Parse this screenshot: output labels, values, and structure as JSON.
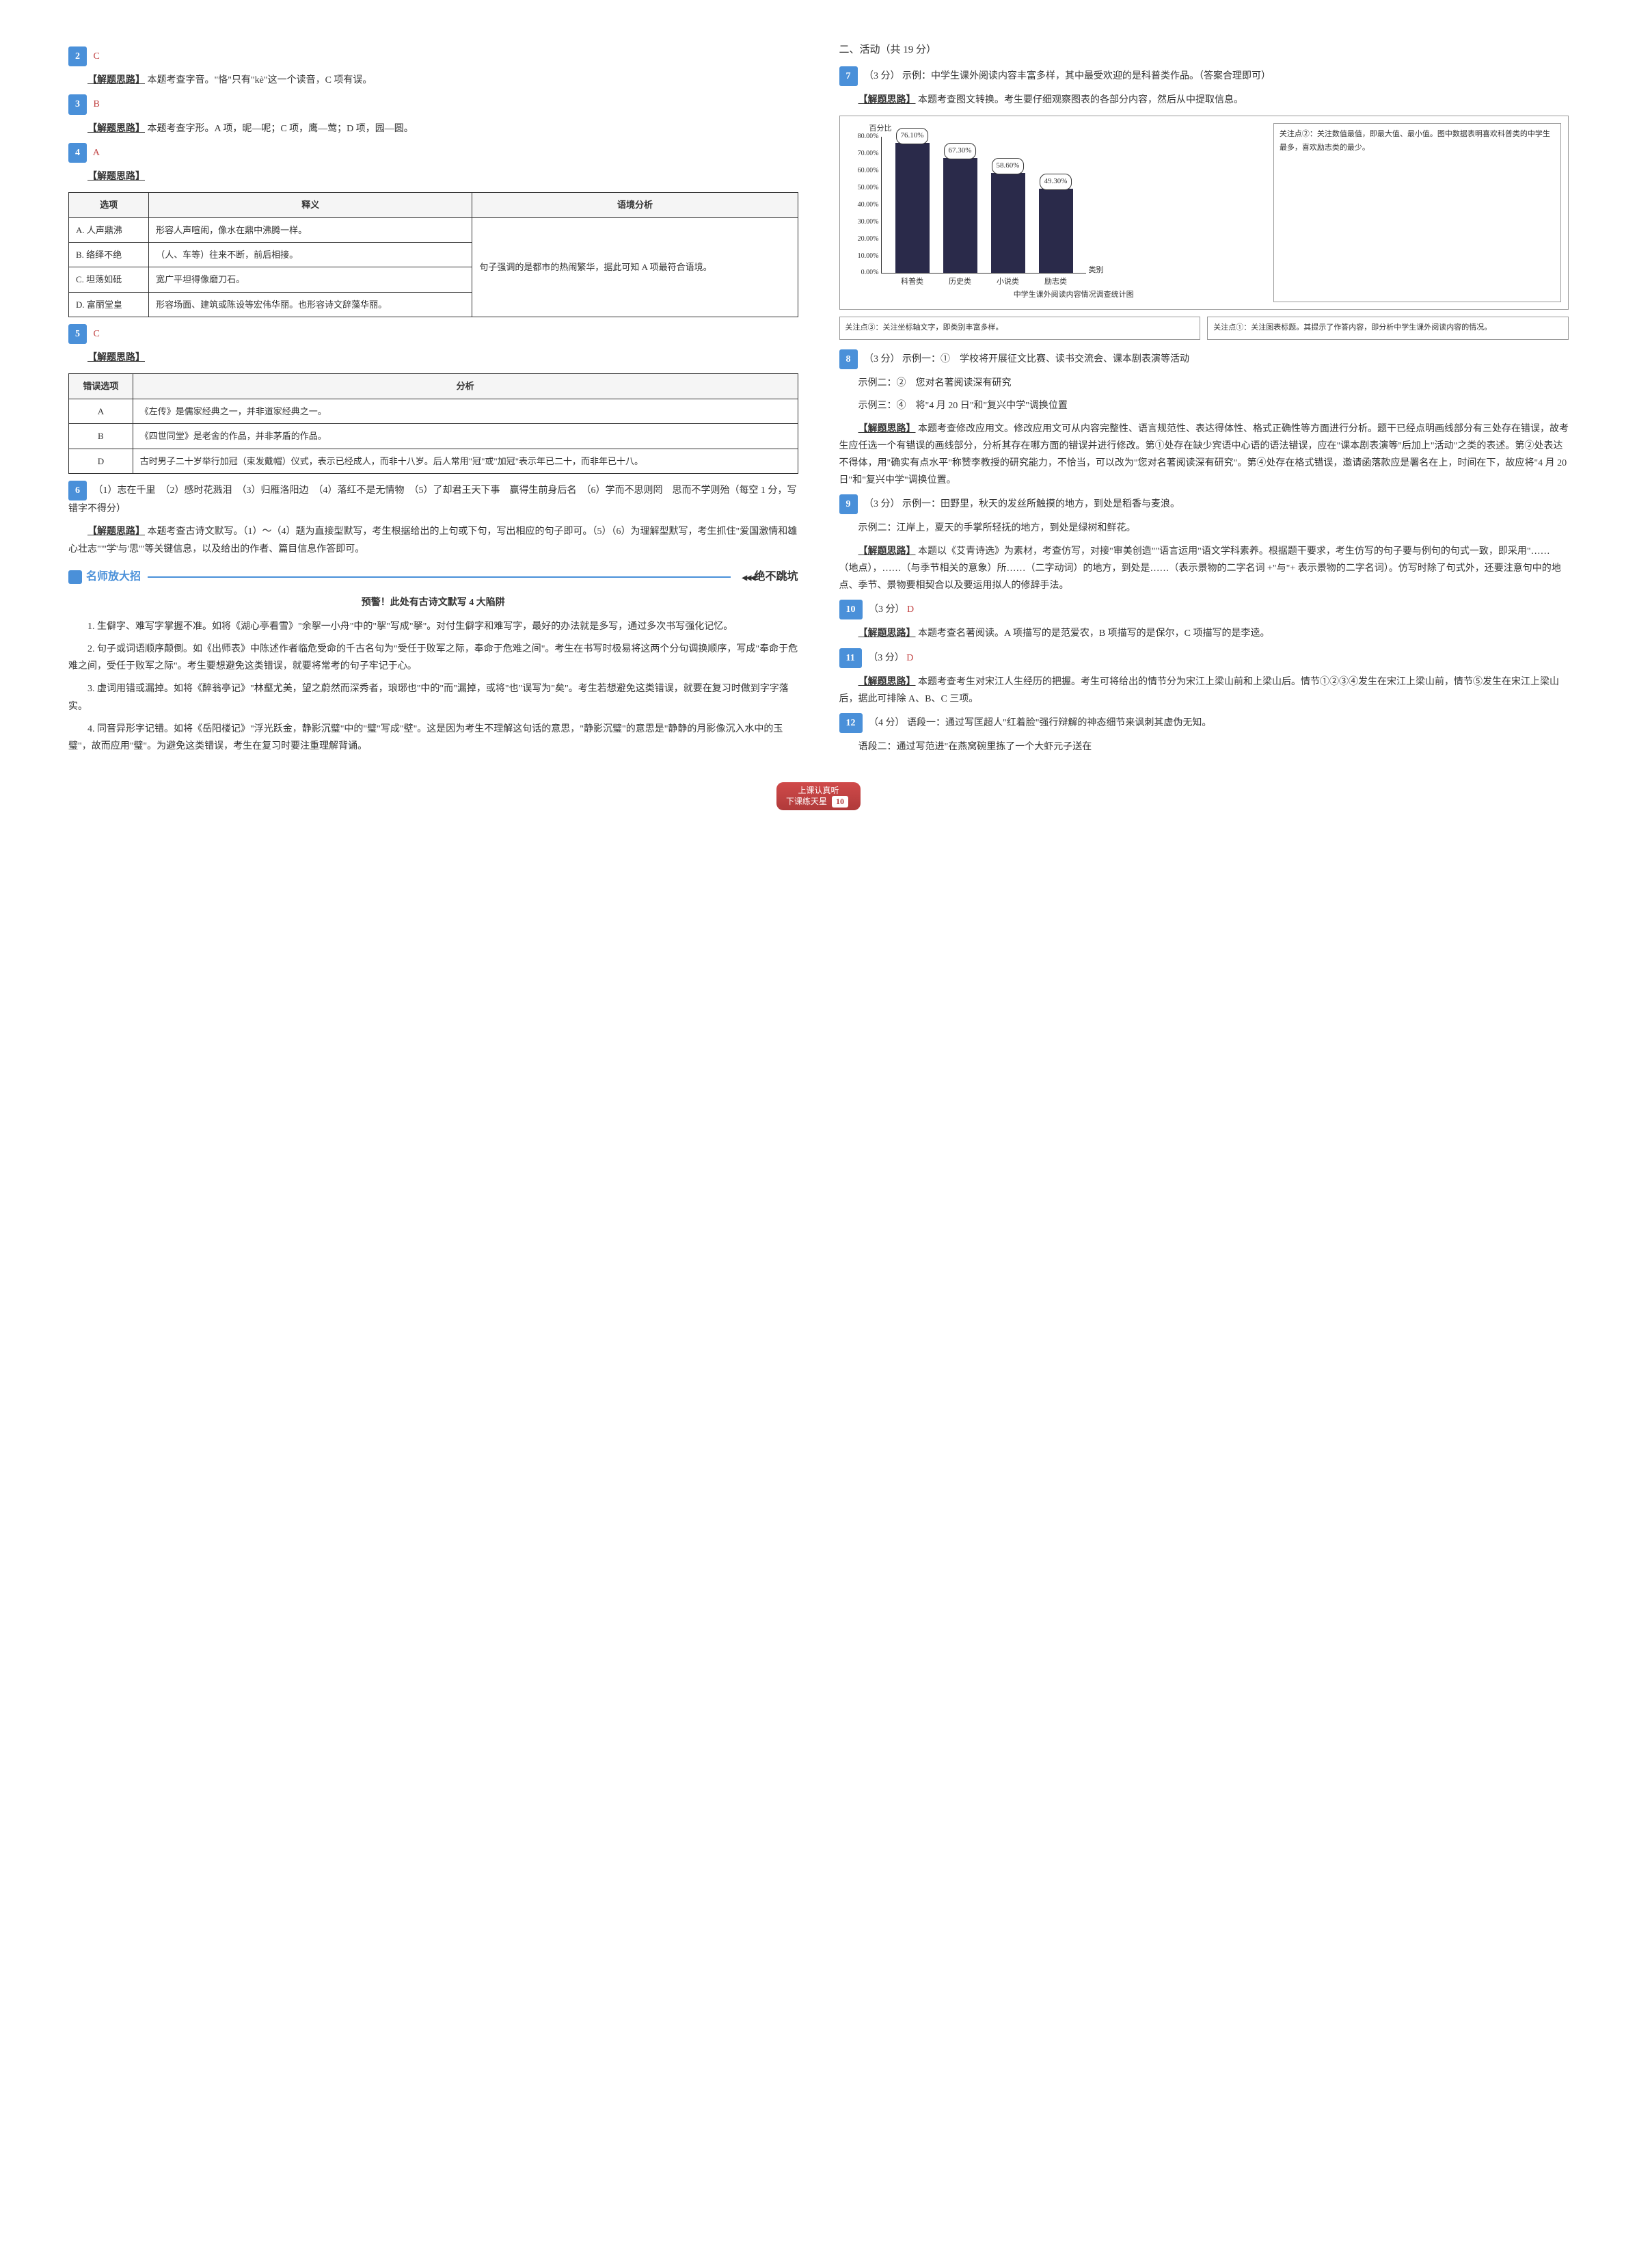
{
  "left": {
    "q2": {
      "num": "2",
      "ans": "C",
      "analysis_label": "【解题思路】",
      "analysis": "本题考查字音。\"恪\"只有\"kè\"这一个读音，C 项有误。"
    },
    "q3": {
      "num": "3",
      "ans": "B",
      "analysis_label": "【解题思路】",
      "analysis": "本题考查字形。A 项，昵—呢；C 项，鹰—莺；D 项，园—圆。"
    },
    "q4": {
      "num": "4",
      "ans": "A",
      "analysis_label": "【解题思路】",
      "table_headers": [
        "选项",
        "释义",
        "语境分析"
      ],
      "rows": [
        {
          "opt": "A. 人声鼎沸",
          "def": "形容人声喧闹，像水在鼎中沸腾一样。"
        },
        {
          "opt": "B. 络绎不绝",
          "def": "（人、车等）往来不断，前后相接。"
        },
        {
          "opt": "C. 坦荡如砥",
          "def": "宽广平坦得像磨刀石。"
        },
        {
          "opt": "D. 富丽堂皇",
          "def": "形容场面、建筑或陈设等宏伟华丽。也形容诗文辞藻华丽。"
        }
      ],
      "context": "句子强调的是都市的热闹繁华，据此可知 A 项最符合语境。"
    },
    "q5": {
      "num": "5",
      "ans": "C",
      "analysis_label": "【解题思路】",
      "table_headers": [
        "错误选项",
        "分析"
      ],
      "rows": [
        {
          "opt": "A",
          "text": "《左传》是儒家经典之一，并非道家经典之一。"
        },
        {
          "opt": "B",
          "text": "《四世同堂》是老舍的作品，并非茅盾的作品。"
        },
        {
          "opt": "D",
          "text": "古时男子二十岁举行加冠（束发戴帽）仪式，表示已经成人，而非十八岁。后人常用\"冠\"或\"加冠\"表示年已二十，而非年已十八。"
        }
      ]
    },
    "q6": {
      "num": "6",
      "text": "（1）志在千里　（2）感时花溅泪　（3）归雁洛阳边　（4）落红不是无情物　（5）了却君王天下事　赢得生前身后名　（6）学而不思则罔　思而不学则殆（每空 1 分，写错字不得分）",
      "analysis_label": "【解题思路】",
      "analysis": "本题考查古诗文默写。（1）～（4）题为直接型默写，考生根据给出的上句或下句，写出相应的句子即可。（5）（6）为理解型默写，考生抓住\"爱国激情和雄心壮志\"\"'学'与'思'\"等关键信息，以及给出的作者、篇目信息作答即可。"
    },
    "tips_section": {
      "title": "名师放大招",
      "right_tag": "绝不跳坑",
      "sub_heading": "预警！此处有古诗文默写 4 大陷阱",
      "p1": "1. 生僻字、难写字掌握不准。如将《湖心亭看雪》\"余挐一小舟\"中的\"挐\"写成\"拏\"。对付生僻字和难写字，最好的办法就是多写，通过多次书写强化记忆。",
      "p2": "2. 句子或词语顺序颠倒。如《出师表》中陈述作者临危受命的千古名句为\"受任于败军之际，奉命于危难之间\"。考生在书写时极易将这两个分句调换顺序，写成\"奉命于危难之间，受任于败军之际\"。考生要想避免这类错误，就要将常考的句子牢记于心。",
      "p3": "3. 虚词用错或漏掉。如将《醉翁亭记》\"林壑尤美，望之蔚然而深秀者，琅琊也\"中的\"而\"漏掉，或将\"也\"误写为\"矣\"。考生若想避免这类错误，就要在复习时做到字字落实。",
      "p4": "4. 同音异形字记错。如将《岳阳楼记》\"浮光跃金，静影沉璧\"中的\"璧\"写成\"壁\"。这是因为考生不理解这句话的意思，\"静影沉璧\"的意思是\"静静的月影像沉入水中的玉璧\"，故而应用\"璧\"。为避免这类错误，考生在复习时要注重理解背诵。"
    }
  },
  "right": {
    "section2_title": "二、活动（共 19 分）",
    "q7": {
      "num": "7",
      "points": "（3 分）",
      "text": "示例：中学生课外阅读内容丰富多样，其中最受欢迎的是科普类作品。（答案合理即可）",
      "analysis_label": "【解题思路】",
      "analysis": "本题考查图文转换。考生要仔细观察图表的各部分内容，然后从中提取信息。",
      "chart": {
        "y_title": "百分比",
        "x_title": "类别",
        "caption": "中学生课外阅读内容情况调查统计图",
        "ylim_max": 80,
        "yticks": [
          "0.00%",
          "10.00%",
          "20.00%",
          "30.00%",
          "40.00%",
          "50.00%",
          "60.00%",
          "70.00%",
          "80.00%"
        ],
        "categories": [
          "科普类",
          "历史类",
          "小说类",
          "励志类"
        ],
        "values": [
          76.1,
          67.3,
          58.6,
          49.3
        ],
        "value_labels": [
          "76.10%",
          "67.30%",
          "58.60%",
          "49.30%"
        ],
        "bar_color": "#2a2a4a",
        "callout_top": "关注点②：关注数值最值，即最大值、最小值。图中数据表明喜欢科普类的中学生最多，喜欢励志类的最少。",
        "callout_left": "关注点③：关注坐标轴文字，即类别丰富多样。",
        "callout_right": "关注点①：关注图表标题。其提示了作答内容，即分析中学生课外阅读内容的情况。"
      }
    },
    "q8": {
      "num": "8",
      "points": "（3 分）",
      "ex1": "示例一：①　学校将开展征文比赛、读书交流会、课本剧表演等活动",
      "ex2": "示例二：②　您对名著阅读深有研究",
      "ex3": "示例三：④　将\"4 月 20 日\"和\"复兴中学\"调换位置",
      "analysis_label": "【解题思路】",
      "analysis": "本题考查修改应用文。修改应用文可从内容完整性、语言规范性、表达得体性、格式正确性等方面进行分析。题干已经点明画线部分有三处存在错误，故考生应任选一个有错误的画线部分，分析其存在哪方面的错误并进行修改。第①处存在缺少宾语中心语的语法错误，应在\"课本剧表演等\"后加上\"活动\"之类的表述。第②处表达不得体，用\"确实有点水平\"称赞李教授的研究能力，不恰当，可以改为\"您对名著阅读深有研究\"。第④处存在格式错误，邀请函落款应是署名在上，时间在下，故应将\"4 月 20 日\"和\"复兴中学\"调换位置。"
    },
    "q9": {
      "num": "9",
      "points": "（3 分）",
      "ex1": "示例一：田野里，秋天的发丝所触摸的地方，到处是稻香与麦浪。",
      "ex2": "示例二：江岸上，夏天的手掌所轻抚的地方，到处是绿树和鲜花。",
      "analysis_label": "【解题思路】",
      "analysis": "本题以《艾青诗选》为素材，考查仿写，对接\"审美创造\"\"语言运用\"语文学科素养。根据题干要求，考生仿写的句子要与例句的句式一致，即采用\"……（地点），……（与季节相关的意象）所……（二字动词）的地方，到处是……（表示景物的二字名词 +\"与\"+ 表示景物的二字名词）。仿写时除了句式外，还要注意句中的地点、季节、景物要相契合以及要运用拟人的修辞手法。"
    },
    "q10": {
      "num": "10",
      "points": "（3 分）",
      "ans": "D",
      "analysis_label": "【解题思路】",
      "analysis": "本题考查名著阅读。A 项描写的是范爱农，B 项描写的是保尔，C 项描写的是李逵。"
    },
    "q11": {
      "num": "11",
      "points": "（3 分）",
      "ans": "D",
      "analysis_label": "【解题思路】",
      "analysis": "本题考查考生对宋江人生经历的把握。考生可将给出的情节分为宋江上梁山前和上梁山后。情节①②③④发生在宋江上梁山前，情节⑤发生在宋江上梁山后，据此可排除 A、B、C 三项。"
    },
    "q12": {
      "num": "12",
      "points": "（4 分）",
      "p1": "语段一：通过写匡超人\"红着脸\"强行辩解的神态细节来讽刺其虚伪无知。",
      "p2": "语段二：通过写范进\"在燕窝碗里拣了一个大虾元子送在"
    }
  },
  "footer": {
    "line1": "上课认真听",
    "line2": "下课练天星",
    "page_num": "10"
  }
}
